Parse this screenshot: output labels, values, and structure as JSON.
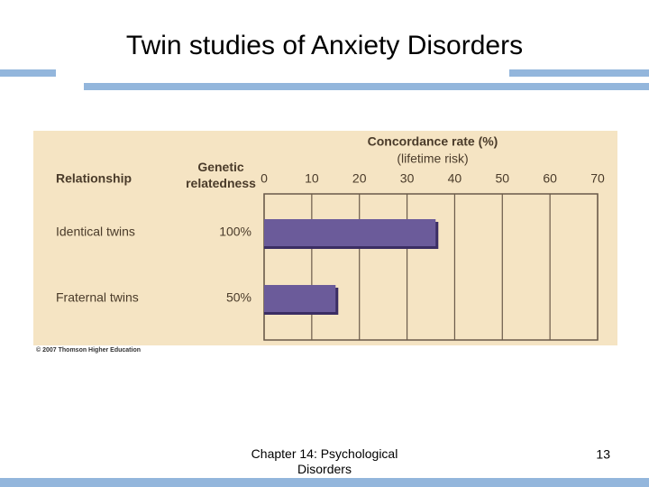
{
  "title": "Twin studies of Anxiety Disorders",
  "chart_data": {
    "type": "bar",
    "orientation": "horizontal",
    "x_label": "Concordance rate (%)",
    "x_sublabel": "(lifetime risk)",
    "column_headers": [
      "Relationship",
      "Genetic relatedness"
    ],
    "categories": [
      "Identical twins",
      "Fraternal twins"
    ],
    "relatedness": [
      "100%",
      "50%"
    ],
    "values": [
      36,
      15
    ],
    "color": "#6b5b9a",
    "xlim": [
      0,
      70
    ],
    "xticks": [
      0,
      10,
      20,
      30,
      40,
      50,
      60,
      70
    ],
    "grid": true,
    "credit": "© 2007 Thomson Higher Education"
  },
  "footer": {
    "text": "Chapter 14: Psychological Disorders",
    "page": "13"
  }
}
